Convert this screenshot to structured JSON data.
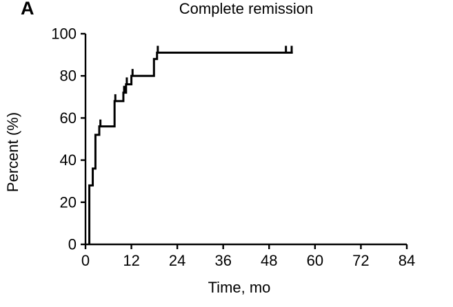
{
  "figure": {
    "panel_label": "A",
    "title": "Complete remission",
    "y_axis_title": "Percent (%)",
    "x_axis_title": "Time, mo",
    "background_color": "#ffffff",
    "line_color": "#000000",
    "text_color": "#000000"
  },
  "chart_data": {
    "type": "line",
    "subtype": "kaplan-meier-step-curve",
    "title": "Complete remission",
    "xlabel": "Time, mo",
    "ylabel": "Percent (%)",
    "xlim": [
      0,
      84
    ],
    "ylim": [
      0,
      100
    ],
    "x_ticks": [
      0,
      12,
      24,
      36,
      48,
      60,
      72,
      84
    ],
    "y_ticks": [
      0,
      20,
      40,
      60,
      80,
      100
    ],
    "grid": false,
    "legend": "none",
    "series": [
      {
        "name": "Complete remission",
        "color": "#000000",
        "start": [
          1.0,
          0
        ],
        "steps": [
          [
            1.0,
            28
          ],
          [
            1.9,
            36
          ],
          [
            2.6,
            52
          ],
          [
            3.6,
            56
          ],
          [
            7.6,
            68
          ],
          [
            9.9,
            72
          ],
          [
            10.6,
            76
          ],
          [
            12.0,
            80
          ],
          [
            17.9,
            88
          ],
          [
            18.7,
            91
          ]
        ],
        "end_month": 54.2,
        "censor_marks": [
          [
            3.9,
            56
          ],
          [
            7.8,
            68
          ],
          [
            10.1,
            72
          ],
          [
            10.8,
            76
          ],
          [
            12.3,
            80
          ],
          [
            18.9,
            91
          ],
          [
            52.4,
            91
          ],
          [
            53.9,
            91
          ]
        ]
      }
    ]
  }
}
